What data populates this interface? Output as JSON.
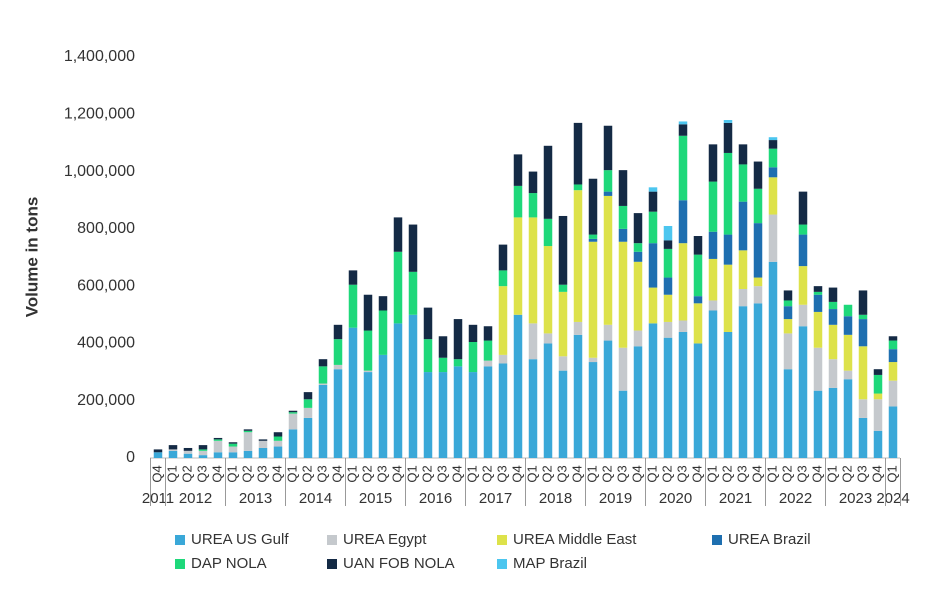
{
  "chart_data": {
    "type": "stacked-bar",
    "y_label": "Volume in tons",
    "categories": [
      "Q4",
      "Q1",
      "Q2",
      "Q3",
      "Q4",
      "Q1",
      "Q2",
      "Q3",
      "Q4",
      "Q1",
      "Q2",
      "Q3",
      "Q4",
      "Q1",
      "Q2",
      "Q3",
      "Q4",
      "Q1",
      "Q2",
      "Q3",
      "Q4",
      "Q1",
      "Q2",
      "Q3",
      "Q4",
      "Q1",
      "Q2",
      "Q3",
      "Q4",
      "Q1",
      "Q2",
      "Q3",
      "Q4",
      "Q1",
      "Q2",
      "Q3",
      "Q4",
      "Q1",
      "Q2",
      "Q3",
      "Q4",
      "Q1",
      "Q2",
      "Q3",
      "Q4",
      "Q1",
      "Q2",
      "Q3",
      "Q4",
      "Q1"
    ],
    "years": [
      "2011",
      "2012",
      "2013",
      "2014",
      "2015",
      "2016",
      "2017",
      "2018",
      "2019",
      "2020",
      "2021",
      "2022",
      "2023",
      "2024"
    ],
    "ylim": [
      0,
      1400000
    ],
    "yticks": [
      0,
      {
        "value": 200000,
        "label": "200,000"
      },
      {
        "value": 400000,
        "label": "400,000"
      },
      {
        "value": 600000,
        "label": "600,000"
      },
      {
        "value": 800000,
        "label": "800,000"
      },
      {
        "value": 1000000,
        "label": "1,000,000"
      },
      {
        "value": 1200000,
        "label": "1,200,000"
      },
      {
        "value": 1400000,
        "label": "1,400,000"
      }
    ],
    "grid": false,
    "legend": "bottom",
    "series": [
      {
        "name": "UREA US Gulf",
        "color": "#3aa8d8",
        "values": [
          20000,
          25000,
          15000,
          10000,
          20000,
          20000,
          25000,
          35000,
          40000,
          100000,
          140000,
          255000,
          310000,
          455000,
          300000,
          360000,
          470000,
          500000,
          300000,
          300000,
          320000,
          300000,
          320000,
          330000,
          500000,
          345000,
          400000,
          305000,
          430000,
          335000,
          410000,
          235000,
          390000,
          470000,
          420000,
          440000,
          400000,
          515000,
          440000,
          530000,
          540000,
          685000,
          310000,
          460000,
          235000,
          245000,
          275000,
          140000,
          95000,
          180000
        ]
      },
      {
        "name": "UREA Egypt",
        "color": "#c5c9cd",
        "values": [
          0,
          5000,
          10000,
          15000,
          40000,
          20000,
          65000,
          25000,
          20000,
          55000,
          35000,
          5000,
          15000,
          0,
          5000,
          0,
          0,
          0,
          0,
          0,
          0,
          0,
          20000,
          30000,
          0,
          125000,
          35000,
          50000,
          45000,
          15000,
          55000,
          150000,
          55000,
          0,
          55000,
          40000,
          0,
          35000,
          0,
          60000,
          60000,
          165000,
          125000,
          75000,
          150000,
          100000,
          30000,
          65000,
          110000,
          90000
        ]
      },
      {
        "name": "UREA Middle East",
        "color": "#dde24a",
        "values": [
          0,
          0,
          0,
          0,
          0,
          0,
          0,
          0,
          0,
          0,
          0,
          0,
          0,
          0,
          0,
          0,
          0,
          0,
          0,
          0,
          0,
          0,
          0,
          240000,
          340000,
          370000,
          305000,
          225000,
          460000,
          405000,
          450000,
          370000,
          240000,
          125000,
          95000,
          270000,
          140000,
          145000,
          235000,
          135000,
          30000,
          130000,
          50000,
          135000,
          125000,
          120000,
          125000,
          185000,
          20000,
          65000
        ]
      },
      {
        "name": "UREA Brazil",
        "color": "#1e6fb0",
        "values": [
          0,
          0,
          0,
          0,
          0,
          0,
          0,
          0,
          0,
          0,
          0,
          0,
          0,
          0,
          0,
          0,
          0,
          0,
          0,
          0,
          0,
          0,
          0,
          0,
          0,
          0,
          0,
          0,
          0,
          10000,
          15000,
          45000,
          35000,
          155000,
          60000,
          150000,
          25000,
          95000,
          105000,
          170000,
          190000,
          35000,
          45000,
          110000,
          60000,
          55000,
          65000,
          95000,
          0,
          45000
        ]
      },
      {
        "name": "DAP NOLA",
        "color": "#1ed87a",
        "values": [
          0,
          0,
          0,
          5000,
          5000,
          10000,
          5000,
          0,
          15000,
          5000,
          30000,
          60000,
          90000,
          150000,
          140000,
          155000,
          250000,
          150000,
          115000,
          50000,
          25000,
          105000,
          70000,
          55000,
          110000,
          85000,
          95000,
          25000,
          20000,
          15000,
          75000,
          80000,
          30000,
          110000,
          100000,
          225000,
          145000,
          175000,
          285000,
          130000,
          120000,
          65000,
          20000,
          35000,
          10000,
          25000,
          40000,
          15000,
          65000,
          30000
        ]
      },
      {
        "name": "UAN FOB NOLA",
        "color": "#142a45",
        "values": [
          10000,
          15000,
          10000,
          15000,
          5000,
          5000,
          5000,
          5000,
          15000,
          5000,
          25000,
          25000,
          50000,
          50000,
          125000,
          50000,
          120000,
          165000,
          110000,
          75000,
          140000,
          60000,
          50000,
          90000,
          110000,
          75000,
          255000,
          240000,
          215000,
          195000,
          155000,
          125000,
          105000,
          70000,
          30000,
          40000,
          65000,
          130000,
          105000,
          70000,
          95000,
          30000,
          35000,
          115000,
          20000,
          50000,
          0,
          85000,
          20000,
          15000
        ]
      },
      {
        "name": "MAP Brazil",
        "color": "#4cc6ef",
        "values": [
          0,
          0,
          0,
          0,
          0,
          0,
          0,
          0,
          0,
          0,
          0,
          0,
          0,
          0,
          0,
          0,
          0,
          0,
          0,
          0,
          0,
          0,
          0,
          0,
          0,
          0,
          0,
          0,
          0,
          0,
          0,
          0,
          0,
          15000,
          50000,
          10000,
          0,
          0,
          10000,
          0,
          0,
          10000,
          0,
          0,
          0,
          0,
          0,
          0,
          0,
          0
        ]
      }
    ]
  }
}
